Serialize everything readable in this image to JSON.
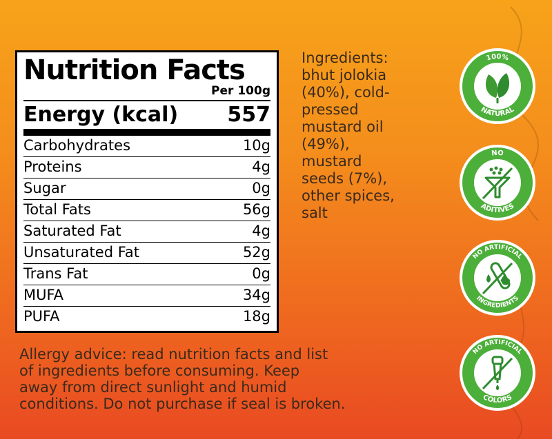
{
  "nutrition": {
    "title": "Nutrition Facts",
    "per": "Per 100g",
    "energy_label": "Energy (kcal)",
    "energy_value": "557",
    "rows": [
      {
        "label": "Carbohydrates",
        "value": "10g"
      },
      {
        "label": "Proteins",
        "value": "4g"
      },
      {
        "label": "Sugar",
        "value": "0g"
      },
      {
        "label": "Total Fats",
        "value": "56g"
      },
      {
        "label": "Saturated Fat",
        "value": "4g"
      },
      {
        "label": "Unsaturated Fat",
        "value": "52g"
      },
      {
        "label": "Trans Fat",
        "value": "0g"
      },
      {
        "label": "MUFA",
        "value": "34g"
      },
      {
        "label": "PUFA",
        "value": "18g"
      }
    ]
  },
  "ingredients": {
    "lines": [
      "Ingredients:",
      "bhut jolokia",
      "(40%), cold-",
      "pressed",
      "mustard oil",
      "(49%),",
      "mustard",
      "seeds (7%),",
      "other spices,",
      "salt"
    ]
  },
  "allergy": {
    "lines": [
      "Allergy advice: read nutrition facts and list",
      "of ingredients before consuming. Keep",
      "away from direct sunlight and humid",
      "conditions. Do not purchase if seal is broken."
    ]
  },
  "badges": [
    {
      "top": "100%",
      "bottom": "NATURAL",
      "icon": "leaves-icon"
    },
    {
      "top": "NO",
      "bottom": "ADITIVES",
      "icon": "funnel-icon"
    },
    {
      "top": "NO ARTIFICIAL",
      "bottom": "INGREDIENTS",
      "icon": "test-tube-icon"
    },
    {
      "top": "NO ARTIFICIAL",
      "bottom": "COLORS",
      "icon": "dropper-icon"
    }
  ],
  "colors": {
    "badge_green": "#4caf3a",
    "badge_dark_green": "#2e8b2e",
    "text_brown": "#3a2a1c"
  }
}
